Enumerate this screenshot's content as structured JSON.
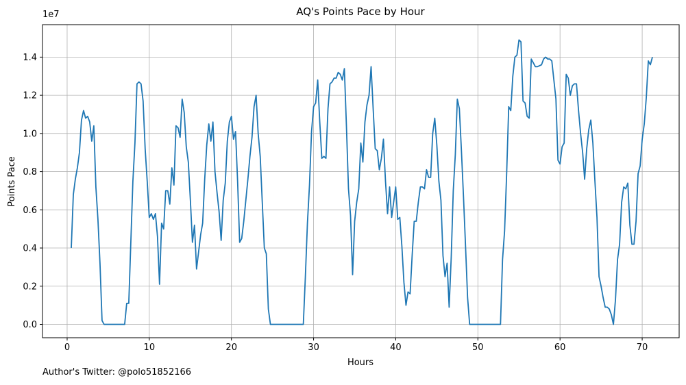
{
  "footer": {
    "note": "Author's Twitter: @polo51852166"
  },
  "chart_data": {
    "type": "line",
    "title": "AQ's Points Pace by Hour",
    "xlabel": "Hours",
    "ylabel": "Points Pace",
    "y_offset_label": "1e7",
    "xlim": [
      -3,
      74.5
    ],
    "ylim": [
      -0.7,
      15.7
    ],
    "xticks": [
      0,
      10,
      20,
      30,
      40,
      50,
      60,
      70
    ],
    "xtick_labels": [
      "0",
      "10",
      "20",
      "30",
      "40",
      "50",
      "60",
      "70"
    ],
    "yticks": [
      0,
      2,
      4,
      6,
      8,
      10,
      12,
      14
    ],
    "ytick_labels": [
      "0.0",
      "0.2",
      "0.4",
      "0.6",
      "0.8",
      "1.0",
      "1.2",
      "1.4"
    ],
    "grid": true,
    "line_color": "#1f77b4",
    "series": [
      {
        "x": [
          0.5,
          0.75,
          1.0,
          1.25,
          1.5,
          1.75,
          2.0,
          2.25,
          2.5,
          2.75,
          3.0,
          3.25,
          3.5,
          3.75,
          4.0,
          4.25,
          4.5,
          4.75,
          5.0,
          5.5,
          6.0,
          6.5,
          7.0,
          7.25,
          7.5,
          7.75,
          8.0,
          8.25,
          8.5,
          8.75,
          9.0,
          9.25,
          9.5,
          9.75,
          10.0,
          10.25,
          10.5,
          10.75,
          11.0,
          11.25,
          11.5,
          11.75,
          12.0,
          12.25,
          12.5,
          12.75,
          13.0,
          13.25,
          13.5,
          13.75,
          14.0,
          14.25,
          14.5,
          14.75,
          15.0,
          15.25,
          15.5,
          15.75,
          16.0,
          16.25,
          16.5,
          16.75,
          17.0,
          17.25,
          17.5,
          17.75,
          18.0,
          18.25,
          18.5,
          18.75,
          19.0,
          19.25,
          19.5,
          19.75,
          20.0,
          20.25,
          20.5,
          20.75,
          21.0,
          21.25,
          21.5,
          21.75,
          22.0,
          22.25,
          22.5,
          22.75,
          23.0,
          23.25,
          23.5,
          23.75,
          24.0,
          24.25,
          24.5,
          24.75,
          25.0,
          25.25,
          25.5,
          26.0,
          27.0,
          28.0,
          28.75,
          29.0,
          29.25,
          29.5,
          29.75,
          30.0,
          30.25,
          30.5,
          30.75,
          31.0,
          31.25,
          31.5,
          31.75,
          32.0,
          32.25,
          32.5,
          32.75,
          33.0,
          33.25,
          33.5,
          33.75,
          34.0,
          34.25,
          34.5,
          34.75,
          35.0,
          35.25,
          35.5,
          35.75,
          36.0,
          36.25,
          36.5,
          36.75,
          37.0,
          37.25,
          37.5,
          37.75,
          38.0,
          38.25,
          38.5,
          38.75,
          39.0,
          39.25,
          39.5,
          39.75,
          40.0,
          40.25,
          40.5,
          40.75,
          41.0,
          41.25,
          41.5,
          41.75,
          42.0,
          42.25,
          42.5,
          42.75,
          43.0,
          43.25,
          43.5,
          43.75,
          44.0,
          44.25,
          44.5,
          44.75,
          45.0,
          45.25,
          45.5,
          45.75,
          46.0,
          46.25,
          46.5,
          46.75,
          47.0,
          47.25,
          47.5,
          47.75,
          48.0,
          48.25,
          48.5,
          48.75,
          49.0,
          49.25,
          49.5,
          50.0,
          51.0,
          52.0,
          52.75,
          53.0,
          53.25,
          53.5,
          53.75,
          54.0,
          54.25,
          54.5,
          54.75,
          55.0,
          55.25,
          55.5,
          55.75,
          56.0,
          56.25,
          56.5,
          56.75,
          57.0,
          57.25,
          57.5,
          57.75,
          58.0,
          58.25,
          58.5,
          58.75,
          59.0,
          59.25,
          59.5,
          59.75,
          60.0,
          60.25,
          60.5,
          60.75,
          61.0,
          61.25,
          61.5,
          61.75,
          62.0,
          62.25,
          62.5,
          62.75,
          63.0,
          63.25,
          63.5,
          63.75,
          64.0,
          64.25,
          64.5,
          64.75,
          65.0,
          65.25,
          65.5,
          65.75,
          66.0,
          66.25,
          66.5,
          66.75,
          67.0,
          67.25,
          67.5,
          67.75,
          68.0,
          68.25,
          68.5,
          68.75,
          69.0,
          69.25,
          69.5,
          69.75,
          70.0,
          70.25,
          70.5,
          70.75,
          71.0,
          71.25
        ],
        "y": [
          4.0,
          6.8,
          7.6,
          8.2,
          9.0,
          10.7,
          11.2,
          10.8,
          10.9,
          10.6,
          9.6,
          10.4,
          7.2,
          5.5,
          3.2,
          0.2,
          0.0,
          0.0,
          0.0,
          0.0,
          0.0,
          0.0,
          0.0,
          1.1,
          1.1,
          4.3,
          7.5,
          9.5,
          12.6,
          12.7,
          12.6,
          11.7,
          9.2,
          7.5,
          5.6,
          5.8,
          5.5,
          5.8,
          4.6,
          2.1,
          5.3,
          5.0,
          7.0,
          7.0,
          6.3,
          8.2,
          7.3,
          10.4,
          10.3,
          9.8,
          11.8,
          11.1,
          9.3,
          8.5,
          6.5,
          4.3,
          5.2,
          2.9,
          3.8,
          4.7,
          5.3,
          7.6,
          9.4,
          10.5,
          9.6,
          10.6,
          8.0,
          6.9,
          5.9,
          4.4,
          6.5,
          7.4,
          9.6,
          10.6,
          10.9,
          9.7,
          10.1,
          7.5,
          4.3,
          4.5,
          5.4,
          6.5,
          7.6,
          8.8,
          9.8,
          11.4,
          12.0,
          10.0,
          8.8,
          6.4,
          4.0,
          3.7,
          0.8,
          0.0,
          0.0,
          0.0,
          0.0,
          0.0,
          0.0,
          0.0,
          0.0,
          2.5,
          5.3,
          7.3,
          10.1,
          11.4,
          11.6,
          12.8,
          10.6,
          8.7,
          8.8,
          8.7,
          11.3,
          12.6,
          12.7,
          12.9,
          12.9,
          13.2,
          13.1,
          12.8,
          13.4,
          10.4,
          7.1,
          5.7,
          2.6,
          5.4,
          6.4,
          7.1,
          9.5,
          8.5,
          10.6,
          11.5,
          12.0,
          13.5,
          11.3,
          9.2,
          9.1,
          8.1,
          8.7,
          9.7,
          7.5,
          5.8,
          7.2,
          5.6,
          6.4,
          7.2,
          5.5,
          5.6,
          4.1,
          2.2,
          1.0,
          1.7,
          1.6,
          3.6,
          5.4,
          5.4,
          6.4,
          7.2,
          7.2,
          7.1,
          8.1,
          7.7,
          7.7,
          10.0,
          10.8,
          9.4,
          7.5,
          6.5,
          3.6,
          2.5,
          3.2,
          0.9,
          3.5,
          7.0,
          8.9,
          11.8,
          11.3,
          9.1,
          6.7,
          4.1,
          1.4,
          0.0,
          0.0,
          0.0,
          0.0,
          0.0,
          0.0,
          0.0,
          3.4,
          4.9,
          7.9,
          11.4,
          11.2,
          13.0,
          14.0,
          14.1,
          14.9,
          14.8,
          11.7,
          11.6,
          10.9,
          10.8,
          13.9,
          13.7,
          13.5,
          13.5,
          13.55,
          13.6,
          13.9,
          14.0,
          13.9,
          13.9,
          13.8,
          12.8,
          11.8,
          8.6,
          8.4,
          9.3,
          9.5,
          13.1,
          12.9,
          12.0,
          12.5,
          12.6,
          12.6,
          11.2,
          10.0,
          9.0,
          7.6,
          9.2,
          10.2,
          10.7,
          9.5,
          7.5,
          5.6,
          2.5,
          2.0,
          1.4,
          0.9,
          0.9,
          0.8,
          0.5,
          0.0,
          1.3,
          3.4,
          4.2,
          6.4,
          7.2,
          7.1,
          7.4,
          5.2,
          4.2,
          4.2,
          5.4,
          7.9,
          8.3,
          9.7,
          10.5,
          11.9,
          13.8,
          13.6,
          14.0
        ]
      }
    ]
  }
}
